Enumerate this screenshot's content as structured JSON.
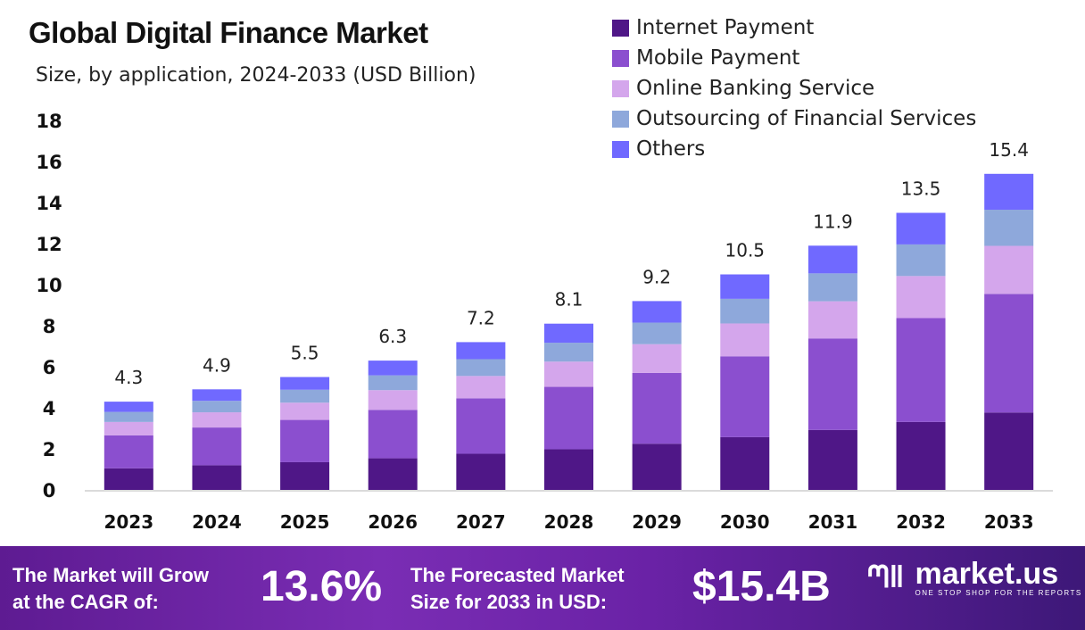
{
  "chart_data": {
    "type": "bar",
    "stacked": true,
    "title": "Global Digital Finance Market",
    "subtitle": "Size, by application, 2024-2033 (USD Billion)",
    "xlabel": "",
    "ylabel": "",
    "ylim": [
      0,
      18
    ],
    "yticks": [
      0,
      2,
      4,
      6,
      8,
      10,
      12,
      14,
      16,
      18
    ],
    "grid": false,
    "legend_position": "top-right",
    "categories": [
      "2023",
      "2024",
      "2025",
      "2026",
      "2027",
      "2028",
      "2029",
      "2030",
      "2031",
      "2032",
      "2033"
    ],
    "totals": [
      "4.3",
      "4.9",
      "5.5",
      "6.3",
      "7.2",
      "8.1",
      "9.2",
      "10.5",
      "11.9",
      "13.5",
      "15.4"
    ],
    "series": [
      {
        "name": "Internet Payment",
        "color": "#4f1787",
        "values": [
          1.05,
          1.2,
          1.35,
          1.54,
          1.76,
          1.98,
          2.25,
          2.57,
          2.92,
          3.31,
          3.77
        ]
      },
      {
        "name": "Mobile Payment",
        "color": "#8b4fcf",
        "values": [
          1.61,
          1.84,
          2.06,
          2.36,
          2.7,
          3.04,
          3.45,
          3.94,
          4.46,
          5.06,
          5.78
        ]
      },
      {
        "name": "Online Banking Service",
        "color": "#d4a6ec",
        "values": [
          0.65,
          0.74,
          0.84,
          0.96,
          1.09,
          1.23,
          1.4,
          1.6,
          1.81,
          2.05,
          2.34
        ]
      },
      {
        "name": "Outsourcing of Financial Services",
        "color": "#8ea8db",
        "values": [
          0.49,
          0.56,
          0.63,
          0.72,
          0.82,
          0.92,
          1.05,
          1.2,
          1.36,
          1.54,
          1.76
        ]
      },
      {
        "name": "Others",
        "color": "#7069ff",
        "values": [
          0.5,
          0.56,
          0.62,
          0.72,
          0.83,
          0.93,
          1.05,
          1.19,
          1.35,
          1.54,
          1.75
        ]
      }
    ]
  },
  "footer": {
    "cagr_label_line1": "The Market will Grow",
    "cagr_label_line2": "at the CAGR of:",
    "cagr_value": "13.6%",
    "forecast_label_line1": "The Forecasted Market",
    "forecast_label_line2": "Size for 2033 in USD:",
    "forecast_value": "$15.4B",
    "brand_name": "market.us",
    "brand_tagline": "ONE STOP SHOP FOR THE REPORTS"
  }
}
